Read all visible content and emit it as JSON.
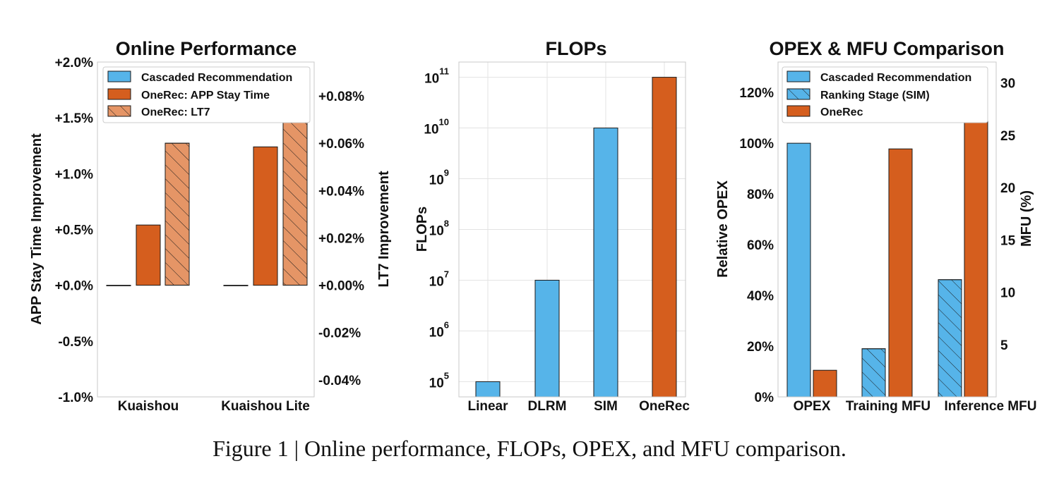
{
  "colors": {
    "blue": "#56b4e9",
    "orange": "#d55e1e",
    "light_orange": "#e59566",
    "edge": "#1a1a1a"
  },
  "caption": "Figure 1 | Online performance, FLOPs, OPEX, and MFU comparison.",
  "chart_data": [
    {
      "type": "bar",
      "title": "Online Performance",
      "categories": [
        "Kuaishou",
        "Kuaishou Lite"
      ],
      "ylabel": "APP Stay Time Improvement",
      "ylim": [
        -1.0,
        2.0
      ],
      "yticks": [
        "-1.0%",
        "-0.5%",
        "+0.0%",
        "+0.5%",
        "+1.0%",
        "+1.5%",
        "+2.0%"
      ],
      "y2label": "LT7 Improvement",
      "y2lim": [
        -0.0472,
        0.0943
      ],
      "y2ticks": [
        "-0.04%",
        "-0.02%",
        "+0.00%",
        "+0.02%",
        "+0.04%",
        "+0.06%",
        "+0.08%"
      ],
      "series": [
        {
          "name": "Cascaded Recommendation",
          "axis": "left",
          "values": [
            0.0,
            0.0
          ]
        },
        {
          "name": "OneRec: APP Stay Time",
          "axis": "left",
          "values": [
            0.54,
            1.24
          ]
        },
        {
          "name": "OneRec: LT7",
          "axis": "right",
          "hatched": true,
          "values": [
            0.06,
            0.07
          ]
        }
      ],
      "legend": "top-left"
    },
    {
      "type": "bar",
      "title": "FLOPs",
      "scale": "log",
      "categories": [
        "Linear",
        "DLRM",
        "SIM",
        "OneRec"
      ],
      "ylabel": "FLOPs",
      "ylim_exponent": [
        4.7,
        11.3
      ],
      "ytick_exponents": [
        "5",
        "6",
        "7",
        "8",
        "9",
        "10",
        "11"
      ],
      "values": [
        100000,
        10000000,
        10000000000,
        100000000000
      ],
      "bar_colors": [
        "blue",
        "blue",
        "blue",
        "orange"
      ],
      "grid": true
    },
    {
      "type": "bar",
      "title": "OPEX & MFU Comparison",
      "categories": [
        "OPEX",
        "Training MFU",
        "Inference MFU"
      ],
      "ylabel": "Relative OPEX",
      "ylim": [
        0,
        132
      ],
      "yticks": [
        "0%",
        "20%",
        "40%",
        "60%",
        "80%",
        "100%",
        "120%"
      ],
      "y2label": "MFU (%)",
      "y2lim": [
        0,
        32
      ],
      "y2ticks": [
        "5",
        "10",
        "15",
        "20",
        "25",
        "30"
      ],
      "series": [
        {
          "name": "Cascaded Recommendation",
          "axis": "left",
          "values": [
            100,
            null,
            null
          ]
        },
        {
          "name": "Ranking Stage (SIM)",
          "axis": "right",
          "hatched": true,
          "values": [
            null,
            4.6,
            11.2
          ]
        },
        {
          "name": "OneRec",
          "axis": "mixed",
          "values": [
            10.5,
            23.7,
            28.8
          ]
        }
      ],
      "legend": "top-left"
    }
  ]
}
